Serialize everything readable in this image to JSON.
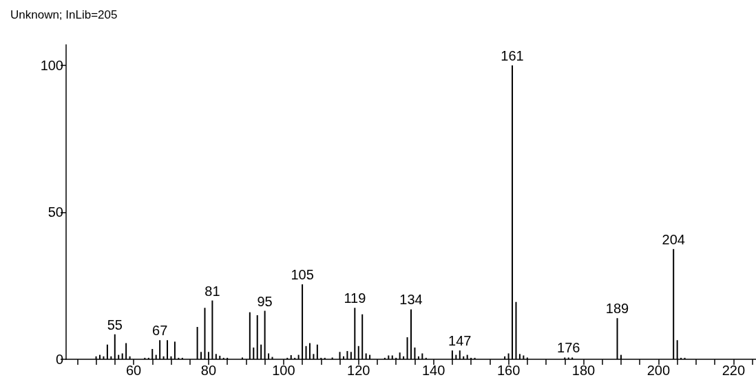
{
  "chart_data": {
    "type": "bar",
    "title": "Unknown; InLib=205",
    "x": [
      50,
      51,
      52,
      53,
      54,
      55,
      56,
      57,
      58,
      59,
      63,
      64,
      65,
      66,
      67,
      68,
      69,
      70,
      71,
      72,
      73,
      77,
      78,
      79,
      80,
      81,
      82,
      83,
      84,
      85,
      89,
      91,
      92,
      93,
      94,
      95,
      96,
      97,
      101,
      102,
      103,
      104,
      105,
      106,
      107,
      108,
      109,
      110,
      111,
      113,
      115,
      116,
      117,
      118,
      119,
      120,
      121,
      122,
      123,
      127,
      128,
      129,
      130,
      131,
      132,
      133,
      134,
      135,
      136,
      137,
      138,
      145,
      146,
      147,
      148,
      149,
      150,
      151,
      159,
      160,
      161,
      162,
      163,
      164,
      165,
      175,
      176,
      177,
      189,
      190,
      204,
      205,
      206,
      207
    ],
    "values": [
      1,
      1.5,
      1,
      5,
      1,
      8.5,
      1.5,
      2,
      5.5,
      1,
      0.5,
      0.5,
      3.5,
      1.5,
      6.5,
      1,
      6.5,
      1,
      6,
      0.5,
      0.5,
      11,
      2.5,
      17.5,
      2.5,
      20,
      1.8,
      1.2,
      0.5,
      0.5,
      0.6,
      16,
      4,
      15,
      5,
      16.5,
      2,
      0.8,
      0.5,
      1.4,
      0.5,
      1.5,
      25.5,
      4.5,
      5.5,
      1.8,
      5,
      0.5,
      0.5,
      0.6,
      2.5,
      1,
      2.8,
      2.5,
      17.5,
      4.5,
      15.3,
      2,
      1.5,
      0.5,
      1.3,
      1.3,
      0.5,
      2.3,
      1,
      7.5,
      17,
      4,
      1,
      2,
      0.5,
      3,
      1.5,
      3,
      1,
      1.5,
      0.5,
      0.5,
      1,
      2,
      100,
      19.5,
      1.8,
      1.3,
      0.6,
      0.6,
      0.6,
      0.6,
      14,
      1.5,
      37.5,
      6.5,
      0.5,
      0.5
    ],
    "annotations": [
      {
        "text": "55",
        "x": 55,
        "y": 8.5
      },
      {
        "text": "67",
        "x": 67,
        "y": 6.5
      },
      {
        "text": "81",
        "x": 81,
        "y": 20
      },
      {
        "text": "95",
        "x": 95,
        "y": 16.5
      },
      {
        "text": "105",
        "x": 105,
        "y": 25.5
      },
      {
        "text": "119",
        "x": 119,
        "y": 17.5
      },
      {
        "text": "134",
        "x": 134,
        "y": 17
      },
      {
        "text": "147",
        "x": 147,
        "y": 3
      },
      {
        "text": "161",
        "x": 161,
        "y": 100
      },
      {
        "text": "176",
        "x": 176,
        "y": 0.6
      },
      {
        "text": "189",
        "x": 189,
        "y": 14
      },
      {
        "text": "204",
        "x": 204,
        "y": 37.5
      }
    ],
    "color": "#000000",
    "xlim": [
      42,
      226
    ],
    "xticks": [
      {
        "value": 45,
        "label": null
      },
      {
        "value": 50,
        "label": null
      },
      {
        "value": 55,
        "label": null
      },
      60,
      {
        "value": 65,
        "label": null
      },
      {
        "value": 70,
        "label": null
      },
      {
        "value": 75,
        "label": null
      },
      80,
      {
        "value": 85,
        "label": null
      },
      {
        "value": 90,
        "label": null
      },
      {
        "value": 95,
        "label": null
      },
      100,
      {
        "value": 105,
        "label": null
      },
      {
        "value": 110,
        "label": null
      },
      {
        "value": 115,
        "label": null
      },
      120,
      {
        "value": 125,
        "label": null
      },
      {
        "value": 130,
        "label": null
      },
      {
        "value": 135,
        "label": null
      },
      140,
      {
        "value": 145,
        "label": null
      },
      {
        "value": 150,
        "label": null
      },
      {
        "value": 155,
        "label": null
      },
      160,
      {
        "value": 165,
        "label": null
      },
      {
        "value": 170,
        "label": null
      },
      {
        "value": 175,
        "label": null
      },
      180,
      {
        "value": 185,
        "label": null
      },
      {
        "value": 190,
        "label": null
      },
      {
        "value": 195,
        "label": null
      },
      200,
      {
        "value": 205,
        "label": null
      },
      {
        "value": 210,
        "label": null
      },
      {
        "value": 215,
        "label": null
      },
      220,
      {
        "value": 225,
        "label": null
      }
    ],
    "ylim": [
      0,
      107
    ],
    "yticks": [
      0,
      50,
      100
    ]
  }
}
